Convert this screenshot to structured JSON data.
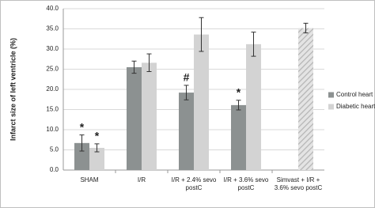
{
  "chart_data": {
    "type": "bar",
    "y_label": "Infarct size of left ventricle (%)",
    "categories": [
      [
        "SHAM"
      ],
      [
        "I/R"
      ],
      [
        "I/R + 2.4% sevo",
        "postC"
      ],
      [
        "I/R + 3.6% sevo",
        "postC"
      ],
      [
        "Simvast + I/R +",
        "3.6% sevo postC"
      ]
    ],
    "series": [
      {
        "name": "Control heart",
        "color": "#8c9191",
        "values": [
          6.7,
          25.5,
          19.2,
          16.1,
          null
        ],
        "errors": [
          2.0,
          1.5,
          1.8,
          1.2,
          null
        ],
        "markers": [
          "*",
          null,
          "#",
          "*",
          null
        ],
        "hatched": [
          false,
          false,
          false,
          false,
          false
        ]
      },
      {
        "name": "Diabetic heart",
        "color": "#d3d3d3",
        "values": [
          5.5,
          26.6,
          33.6,
          31.2,
          35.2
        ],
        "errors": [
          1.0,
          2.2,
          4.2,
          3.0,
          1.2
        ],
        "markers": [
          "*",
          null,
          null,
          null,
          null
        ],
        "hatched": [
          false,
          false,
          false,
          false,
          true
        ]
      }
    ],
    "ylim": [
      0,
      40
    ],
    "yticks": [
      {
        "value": 0,
        "label": "0.0"
      },
      {
        "value": 5,
        "label": "5.0"
      },
      {
        "value": 10,
        "label": "10.0"
      },
      {
        "value": 15,
        "label": "15.0"
      },
      {
        "value": 20,
        "label": "20.0"
      },
      {
        "value": 25,
        "label": "25.0"
      },
      {
        "value": 30,
        "label": "30.0"
      },
      {
        "value": 35,
        "label": "35.0"
      },
      {
        "value": 40,
        "label": "40.0"
      }
    ],
    "grid": true,
    "legend": "right"
  }
}
